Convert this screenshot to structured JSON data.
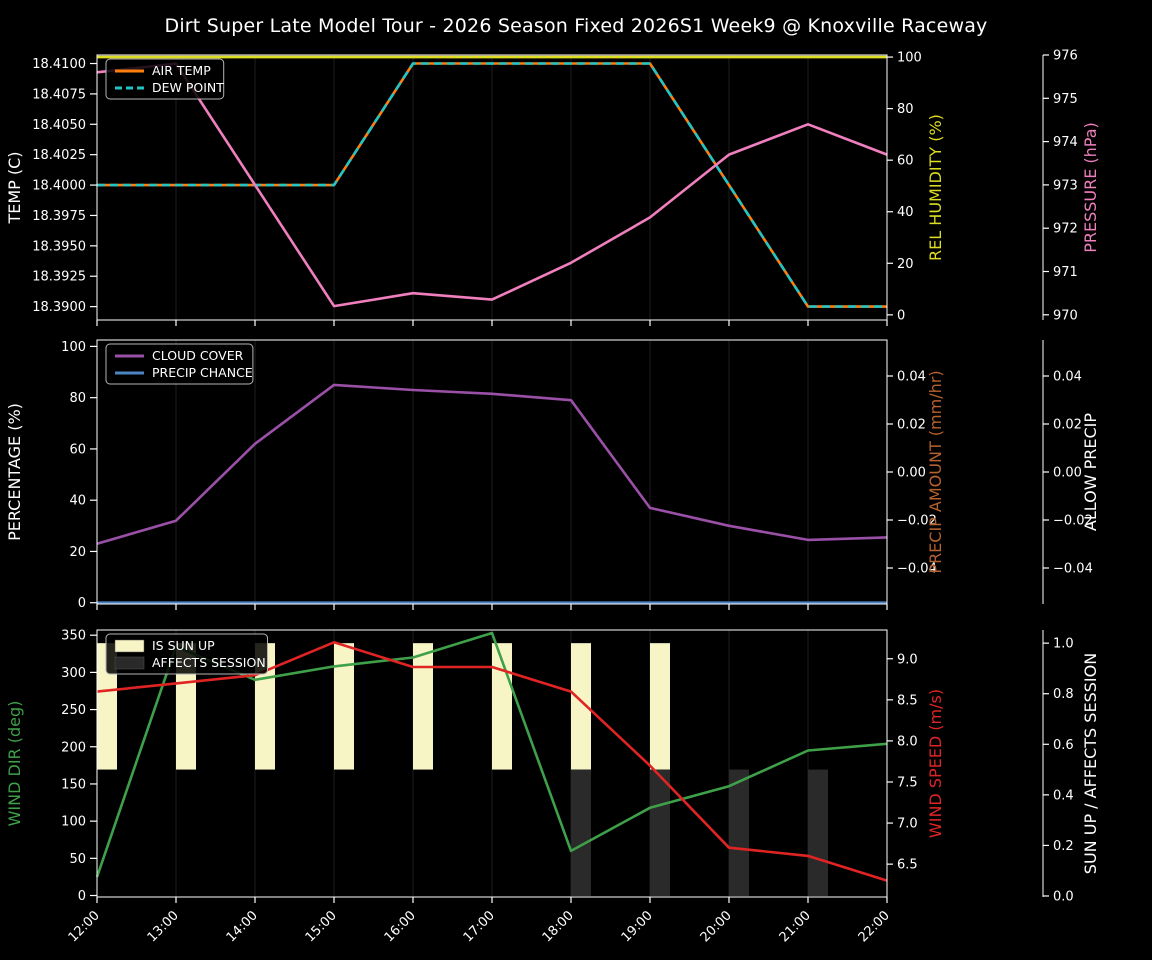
{
  "title": "Dirt Super Late Model Tour - 2026 Season Fixed 2026S1 Week9 @ Knoxville Raceway",
  "background": "#000000",
  "chart_data": {
    "type": "line",
    "x_hours": [
      12,
      13,
      14,
      15,
      16,
      17,
      18,
      19,
      20,
      21,
      22
    ],
    "x_tick_labels": [
      "12:00",
      "13:00",
      "14:00",
      "15:00",
      "16:00",
      "17:00",
      "18:00",
      "19:00",
      "20:00",
      "21:00",
      "22:00"
    ],
    "grid": "vertical-only",
    "panels": [
      {
        "id": "temp-humidity-pressure",
        "legend_position": "upper left",
        "axes": {
          "left": {
            "label": "TEMP (C)",
            "color": "#ffffff",
            "lim": [
              18.3889,
              18.4107
            ],
            "tick_values": [
              18.41,
              18.4075,
              18.405,
              18.4025,
              18.4,
              18.3975,
              18.395,
              18.3925,
              18.39
            ],
            "tick_labels": [
              "18.4100",
              "18.4075",
              "18.4050",
              "18.4025",
              "18.4000",
              "18.3975",
              "18.3950",
              "18.3925",
              "18.3900"
            ]
          },
          "right_inner": {
            "label": "REL HUMIDITY (%)",
            "color": "#dddd22",
            "lim": [
              -2,
              100.8
            ],
            "tick_values": [
              0,
              20,
              40,
              60,
              80,
              100
            ],
            "tick_labels": [
              "0",
              "20",
              "40",
              "60",
              "80",
              "100"
            ]
          },
          "right_outer": {
            "label": "PRESSURE (hPa)",
            "color": "#f07fbe",
            "lim": [
              969.88,
              976.0
            ],
            "tick_values": [
              970,
              971,
              972,
              973,
              974,
              975,
              976
            ],
            "tick_labels": [
              "970",
              "971",
              "972",
              "973",
              "974",
              "975",
              "976"
            ]
          }
        },
        "series": [
          {
            "name": "AIR TEMP",
            "axis": "left",
            "color": "#ff7f0e",
            "dash": null,
            "legend": true,
            "values": [
              18.4,
              18.4,
              18.4,
              18.4,
              18.41,
              18.41,
              18.41,
              18.41,
              18.4,
              18.39,
              18.39
            ]
          },
          {
            "name": "DEW POINT",
            "axis": "left",
            "color": "#22c4c4",
            "dash": [
              8,
              5
            ],
            "legend": true,
            "values": [
              18.4,
              18.4,
              18.4,
              18.4,
              18.41,
              18.41,
              18.41,
              18.41,
              18.4,
              18.39,
              18.39
            ]
          },
          {
            "name": "REL HUMIDITY",
            "axis": "right_inner",
            "color": "#dddd22",
            "dash": null,
            "legend": false,
            "values": [
              100,
              100,
              100,
              100,
              100,
              100,
              100,
              100,
              100,
              100,
              100
            ]
          },
          {
            "name": "PRESSURE",
            "axis": "right_outer",
            "color": "#f07fbe",
            "dash": null,
            "legend": false,
            "values": [
              975.6,
              975.8,
              973.0,
              970.2,
              970.5,
              970.35,
              971.2,
              972.25,
              973.7,
              974.4,
              973.7
            ]
          }
        ],
        "bars": []
      },
      {
        "id": "cloud-precip",
        "legend_position": "upper left",
        "axes": {
          "left": {
            "label": "PERCENTAGE (%)",
            "color": "#ffffff",
            "lim": [
              -0.5,
              102.5
            ],
            "tick_values": [
              0,
              20,
              40,
              60,
              80,
              100
            ],
            "tick_labels": [
              "0",
              "20",
              "40",
              "60",
              "80",
              "100"
            ]
          },
          "right_inner": {
            "label": "PRECIP AMOUNT (mm/hr)",
            "color": "#b5622e",
            "lim": [
              -0.055,
              0.055
            ],
            "tick_values": [
              -0.04,
              -0.02,
              0,
              0.02,
              0.04
            ],
            "tick_labels": [
              "−0.04",
              "−0.02",
              "0.00",
              "0.02",
              "0.04"
            ]
          },
          "right_outer": {
            "label": "ALLOW PRECIP",
            "color": "#ffffff",
            "lim": [
              -0.055,
              0.055
            ],
            "tick_values": [
              -0.04,
              -0.02,
              0,
              0.02,
              0.04
            ],
            "tick_labels": [
              "−0.04",
              "−0.02",
              "0.00",
              "0.02",
              "0.04"
            ]
          }
        },
        "series": [
          {
            "name": "CLOUD COVER",
            "axis": "left",
            "color": "#9b50a8",
            "dash": null,
            "legend": true,
            "values": [
              23,
              32,
              62,
              85,
              83,
              81.5,
              79,
              37,
              30,
              24.5,
              25.5
            ]
          },
          {
            "name": "PRECIP CHANCE",
            "axis": "left",
            "color": "#4d84c4",
            "dash": null,
            "legend": true,
            "values": [
              0,
              0,
              0,
              0,
              0,
              0,
              0,
              0,
              0,
              0,
              0
            ]
          }
        ],
        "bars": [],
        "hidden_series_note": "PRECIP AMOUNT and ALLOW PRECIP axes shown with no visible line"
      },
      {
        "id": "wind-sun",
        "legend_position": "upper left",
        "axes": {
          "left": {
            "label": "WIND DIR (deg)",
            "color": "#3fa04a",
            "lim": [
              -2,
              357
            ],
            "tick_values": [
              0,
              50,
              100,
              150,
              200,
              250,
              300,
              350
            ],
            "tick_labels": [
              "0",
              "50",
              "100",
              "150",
              "200",
              "250",
              "300",
              "350"
            ]
          },
          "right_inner": {
            "label": "WIND SPEED (m/s)",
            "color": "#e02424",
            "lim": [
              6.1,
              9.35
            ],
            "tick_values": [
              6.5,
              7.0,
              7.5,
              8.0,
              8.5,
              9.0
            ],
            "tick_labels": [
              "6.5",
              "7.0",
              "7.5",
              "8.0",
              "8.5",
              "9.0"
            ]
          },
          "right_outer": {
            "label": "SUN UP / AFFECTS SESSION",
            "color": "#ffffff",
            "lim": [
              -0.004,
              1.052
            ],
            "tick_values": [
              0,
              0.2,
              0.4,
              0.6,
              0.8,
              1.0
            ],
            "tick_labels": [
              "0.0",
              "0.2",
              "0.4",
              "0.6",
              "0.8",
              "1.0"
            ]
          }
        },
        "series": [
          {
            "name": "WIND DIR",
            "axis": "left",
            "color": "#3fa04a",
            "dash": null,
            "legend": false,
            "values": [
              25,
              335,
              290,
              308,
              320,
              353,
              60,
              118,
              147,
              195,
              204
            ]
          },
          {
            "name": "WIND SPEED",
            "axis": "right_inner",
            "color": "#e02424",
            "dash": null,
            "legend": false,
            "values": [
              8.6,
              8.7,
              8.8,
              9.2,
              8.9,
              8.9,
              8.6,
              7.7,
              6.7,
              6.6,
              6.3
            ]
          }
        ],
        "bars": [
          {
            "name": "IS SUN UP",
            "color": "#f7f4c5",
            "axis": "right_outer",
            "from": 0.5,
            "to": 1.0,
            "legend": true,
            "flags": [
              1,
              1,
              1,
              1,
              1,
              1,
              1,
              1,
              0,
              0,
              0
            ]
          },
          {
            "name": "AFFECTS SESSION",
            "color": "#2a2a2a",
            "axis": "right_outer",
            "from": 0.0,
            "to": 0.5,
            "legend": true,
            "flags": [
              0,
              0,
              0,
              0,
              0,
              0,
              1,
              1,
              1,
              1,
              0
            ]
          }
        ]
      }
    ]
  }
}
